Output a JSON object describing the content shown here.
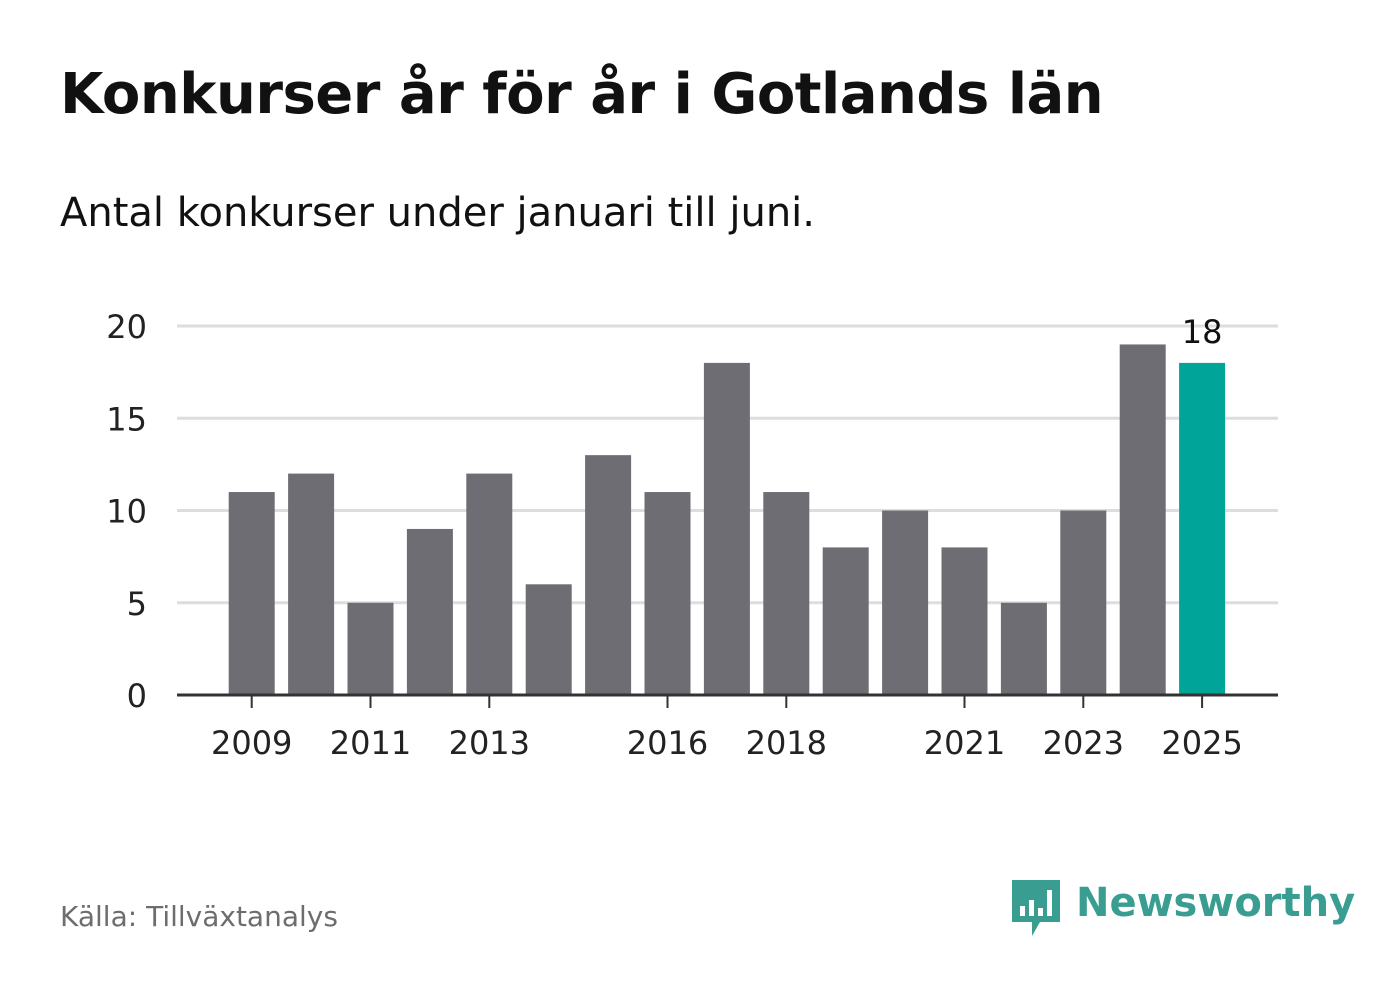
{
  "header": {
    "title": "Konkurser år för år i Gotlands län",
    "subtitle": "Antal konkurser under januari till juni."
  },
  "footer": {
    "source": "Källa: Tillväxtanalys",
    "brand": "Newsworthy",
    "brand_icon": "bar-chart-speech-bubble-icon"
  },
  "colors": {
    "bar": "#6e6d73",
    "highlight": "#00a499",
    "grid": "#dddddd",
    "axis": "#333333",
    "brand": "#3a9d91"
  },
  "chart_data": {
    "type": "bar",
    "title": "Konkurser år för år i Gotlands län",
    "subtitle": "Antal konkurser under januari till juni.",
    "categories": [
      "2009",
      "2010",
      "2011",
      "2012",
      "2013",
      "2014",
      "2015",
      "2016",
      "2017",
      "2018",
      "2019",
      "2020",
      "2021",
      "2022",
      "2023",
      "2024",
      "2025"
    ],
    "values": [
      11,
      12,
      5,
      9,
      12,
      6,
      13,
      11,
      18,
      11,
      8,
      10,
      8,
      5,
      10,
      19,
      18
    ],
    "x_tick_labels": [
      "2009",
      "2011",
      "2013",
      "2016",
      "2018",
      "2021",
      "2023",
      "2025"
    ],
    "y_ticks": [
      0,
      5,
      10,
      15,
      20
    ],
    "ylim": [
      0,
      20
    ],
    "highlight_category": "2025",
    "data_labels": [
      {
        "category": "2025",
        "text": "18"
      }
    ],
    "grid": true,
    "legend": "none"
  }
}
